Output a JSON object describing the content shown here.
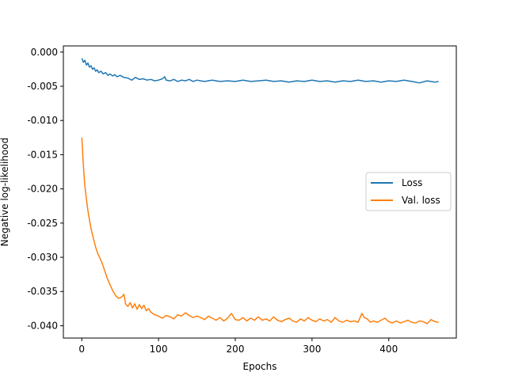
{
  "chart_data": {
    "type": "line",
    "title": "",
    "xlabel": "Epochs",
    "ylabel": "Negative log-likelihood",
    "xlim": [
      -24,
      488
    ],
    "ylim": [
      -0.0418,
      0.0009
    ],
    "x_ticks": [
      0,
      100,
      200,
      300,
      400
    ],
    "x_tick_labels": [
      "0",
      "100",
      "200",
      "300",
      "400"
    ],
    "y_ticks": [
      0.0,
      -0.005,
      -0.01,
      -0.015,
      -0.02,
      -0.025,
      -0.03,
      -0.035,
      -0.04
    ],
    "y_tick_labels": [
      "0.000",
      "-0.005",
      "-0.010",
      "-0.015",
      "-0.020",
      "-0.025",
      "-0.030",
      "-0.035",
      "-0.040"
    ],
    "grid": false,
    "legend_position": "center-right",
    "series": [
      {
        "name": "Loss",
        "color": "#1f77b4",
        "x": [
          0,
          2,
          4,
          6,
          8,
          10,
          12,
          14,
          16,
          18,
          20,
          22,
          25,
          28,
          31,
          34,
          37,
          40,
          43,
          46,
          50,
          55,
          60,
          65,
          70,
          75,
          80,
          85,
          90,
          95,
          100,
          105,
          108,
          110,
          115,
          120,
          125,
          130,
          135,
          140,
          145,
          150,
          155,
          160,
          170,
          180,
          190,
          200,
          210,
          220,
          230,
          240,
          250,
          260,
          270,
          280,
          290,
          300,
          310,
          320,
          330,
          340,
          350,
          360,
          370,
          380,
          390,
          400,
          410,
          420,
          430,
          440,
          450,
          460,
          465
        ],
        "y": [
          -0.0009,
          -0.0015,
          -0.0012,
          -0.0019,
          -0.0016,
          -0.0022,
          -0.002,
          -0.0025,
          -0.0023,
          -0.0028,
          -0.0026,
          -0.003,
          -0.0028,
          -0.0032,
          -0.003,
          -0.0034,
          -0.0032,
          -0.0035,
          -0.0033,
          -0.0036,
          -0.0034,
          -0.0037,
          -0.0038,
          -0.0041,
          -0.0037,
          -0.004,
          -0.0039,
          -0.0041,
          -0.004,
          -0.0042,
          -0.0041,
          -0.0039,
          -0.0036,
          -0.0041,
          -0.0042,
          -0.004,
          -0.0043,
          -0.0041,
          -0.0042,
          -0.004,
          -0.0043,
          -0.0041,
          -0.0042,
          -0.0043,
          -0.0041,
          -0.0043,
          -0.0042,
          -0.0043,
          -0.0041,
          -0.0043,
          -0.0042,
          -0.0041,
          -0.0043,
          -0.0042,
          -0.0044,
          -0.0042,
          -0.0043,
          -0.0041,
          -0.0043,
          -0.0042,
          -0.0044,
          -0.0042,
          -0.0043,
          -0.0041,
          -0.0043,
          -0.0042,
          -0.0044,
          -0.0042,
          -0.0043,
          -0.0041,
          -0.0043,
          -0.0045,
          -0.0042,
          -0.0044,
          -0.0043
        ]
      },
      {
        "name": "Val. loss",
        "color": "#ff7f0e",
        "x": [
          0,
          2,
          4,
          6,
          8,
          10,
          12,
          15,
          18,
          21,
          24,
          27,
          30,
          33,
          36,
          40,
          44,
          48,
          52,
          55,
          57,
          60,
          63,
          66,
          69,
          72,
          75,
          78,
          81,
          84,
          87,
          90,
          95,
          100,
          105,
          110,
          115,
          120,
          125,
          130,
          135,
          140,
          145,
          150,
          155,
          160,
          165,
          170,
          175,
          180,
          185,
          190,
          195,
          200,
          205,
          210,
          215,
          220,
          225,
          230,
          235,
          240,
          245,
          250,
          255,
          260,
          265,
          270,
          275,
          280,
          285,
          290,
          295,
          300,
          305,
          310,
          315,
          320,
          325,
          330,
          335,
          340,
          345,
          350,
          355,
          360,
          365,
          368,
          372,
          376,
          380,
          385,
          390,
          395,
          400,
          405,
          410,
          415,
          420,
          425,
          430,
          435,
          440,
          445,
          450,
          455,
          460,
          465
        ],
        "y": [
          -0.0125,
          -0.0165,
          -0.0195,
          -0.0215,
          -0.0232,
          -0.0245,
          -0.0258,
          -0.0272,
          -0.0285,
          -0.0295,
          -0.0302,
          -0.031,
          -0.032,
          -0.033,
          -0.0338,
          -0.0348,
          -0.0356,
          -0.036,
          -0.0358,
          -0.0354,
          -0.0368,
          -0.0372,
          -0.0366,
          -0.0374,
          -0.0368,
          -0.0376,
          -0.0369,
          -0.0375,
          -0.037,
          -0.0378,
          -0.0375,
          -0.038,
          -0.0384,
          -0.0386,
          -0.0389,
          -0.0385,
          -0.0387,
          -0.039,
          -0.0384,
          -0.0386,
          -0.0381,
          -0.0385,
          -0.0388,
          -0.0386,
          -0.0388,
          -0.0391,
          -0.0386,
          -0.0389,
          -0.0392,
          -0.0388,
          -0.0393,
          -0.0389,
          -0.0382,
          -0.0391,
          -0.0392,
          -0.0388,
          -0.0393,
          -0.0389,
          -0.0392,
          -0.0387,
          -0.0392,
          -0.039,
          -0.0393,
          -0.0387,
          -0.0392,
          -0.0394,
          -0.0391,
          -0.0389,
          -0.0393,
          -0.0395,
          -0.039,
          -0.0393,
          -0.0388,
          -0.0392,
          -0.0394,
          -0.039,
          -0.0393,
          -0.0391,
          -0.0395,
          -0.0388,
          -0.0393,
          -0.0395,
          -0.0392,
          -0.0394,
          -0.0393,
          -0.0395,
          -0.0382,
          -0.0388,
          -0.039,
          -0.0395,
          -0.0393,
          -0.0395,
          -0.0392,
          -0.0389,
          -0.0394,
          -0.0396,
          -0.0393,
          -0.0396,
          -0.0394,
          -0.0392,
          -0.0395,
          -0.0396,
          -0.0393,
          -0.0394,
          -0.0397,
          -0.0391,
          -0.0394,
          -0.0395
        ]
      }
    ]
  }
}
